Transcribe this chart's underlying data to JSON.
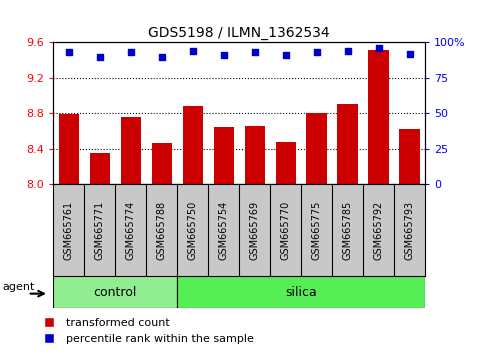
{
  "title": "GDS5198 / ILMN_1362534",
  "samples": [
    "GSM665761",
    "GSM665771",
    "GSM665774",
    "GSM665788",
    "GSM665750",
    "GSM665754",
    "GSM665769",
    "GSM665770",
    "GSM665775",
    "GSM665785",
    "GSM665792",
    "GSM665793"
  ],
  "bar_values": [
    8.79,
    8.35,
    8.76,
    8.46,
    8.88,
    8.65,
    8.66,
    8.48,
    8.8,
    8.91,
    9.52,
    8.62
  ],
  "percentile_values": [
    93,
    90,
    93,
    90,
    94,
    91,
    93,
    91,
    93,
    94,
    96,
    92
  ],
  "ylim_left": [
    8.0,
    9.6
  ],
  "ylim_right": [
    0,
    100
  ],
  "yticks_left": [
    8.0,
    8.4,
    8.8,
    9.2,
    9.6
  ],
  "yticks_right": [
    0,
    25,
    50,
    75,
    100
  ],
  "ytick_right_labels": [
    "0",
    "25",
    "50",
    "75",
    "100%"
  ],
  "bar_color": "#cc0000",
  "dot_color": "#0000cc",
  "control_samples": 4,
  "control_label": "control",
  "silica_label": "silica",
  "agent_label": "agent",
  "legend_bar_label": "transformed count",
  "legend_dot_label": "percentile rank within the sample",
  "control_color": "#90ee90",
  "silica_color": "#55ee55",
  "xtick_bg_color": "#c8c8c8",
  "fig_width": 4.83,
  "fig_height": 3.54,
  "dpi": 100
}
